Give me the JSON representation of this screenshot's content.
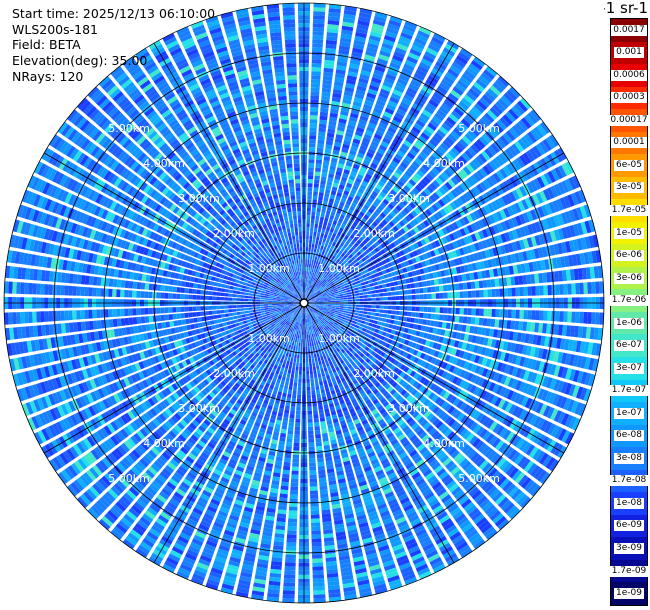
{
  "info": {
    "start_time": "Start time: 2025/12/13 06:10:00",
    "instrument": "WLS200s-181",
    "field": "Field: BETA",
    "elevation": "Elevation(deg): 35.00",
    "nrays": "NRays: 120"
  },
  "colorbar": {
    "unit": "m-1 sr-1",
    "labels": [
      "0.0017",
      "0.001",
      "0.0006",
      "0.0003",
      "0.00017",
      "0.0001",
      "6e-05",
      "3e-05",
      "1.7e-05",
      "1e-05",
      "6e-06",
      "3e-06",
      "1.7e-06",
      "1e-06",
      "6e-07",
      "3e-07",
      "1.7e-07",
      "1e-07",
      "6e-08",
      "3e-08",
      "1.7e-08",
      "1e-08",
      "6e-09",
      "3e-09",
      "1.7e-09",
      "1e-09"
    ],
    "colors": [
      "#8b0000",
      "#c00000",
      "#e60000",
      "#ff2a00",
      "#ff5500",
      "#ff7700",
      "#ff9900",
      "#ffbb00",
      "#ffdd00",
      "#f2f200",
      "#d4f21e",
      "#aef24a",
      "#86f080",
      "#62e8a8",
      "#42e6c8",
      "#26e0e8",
      "#10c8f8",
      "#10b0ff",
      "#1098ff",
      "#1880ff",
      "#1c60ff",
      "#1a40ff",
      "#1220e0",
      "#0a10b8",
      "#050890",
      "#020468"
    ]
  },
  "ring_labels": [
    "1.00km",
    "2.00km",
    "3.00km",
    "4.00km",
    "5.00km"
  ],
  "chart_data": {
    "type": "heatmap",
    "title": "",
    "field": "BETA",
    "instrument": "WLS200s-181",
    "start_time": "2025/12/13 06:10:00",
    "elevation_deg": 35.0,
    "n_rays": 120,
    "range_rings_km": [
      1,
      2,
      3,
      4,
      5
    ],
    "max_range_km": 6.0,
    "dominant_value_range": [
      "3e-08",
      "1e-07"
    ],
    "colorbar_scale": "log"
  }
}
